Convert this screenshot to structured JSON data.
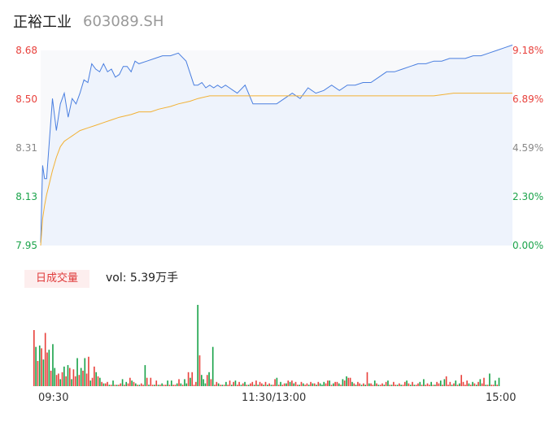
{
  "header": {
    "stock_name": "正裕工业",
    "stock_code": "603089.SH"
  },
  "colors": {
    "up": "#e8413c",
    "down": "#1aa34a",
    "neutral": "#888888",
    "price_line": "#4a7fe0",
    "avg_line": "#f2b134",
    "area": "#eef3fc",
    "panel": "#f8f9fb"
  },
  "price_axis": {
    "left_ticks": [
      "8.68",
      "8.50",
      "8.31",
      "8.13",
      "7.95"
    ],
    "right_ticks": [
      "9.18%",
      "6.89%",
      "4.59%",
      "2.30%",
      "0.00%"
    ],
    "tick_colors": [
      "up",
      "up",
      "neutral",
      "down",
      "down"
    ]
  },
  "volume": {
    "tab_label": "日成交量",
    "summary": "vol: 5.39万手"
  },
  "time_axis": {
    "labels": [
      "09:30",
      "11:30/13:00",
      "15:00"
    ]
  },
  "chart_data": {
    "type": "line",
    "x_labels": [
      "09:30",
      "11:30/13:00",
      "15:00"
    ],
    "ylim": [
      7.95,
      8.68
    ],
    "series": [
      {
        "key": "price",
        "x": [
          0,
          1,
          2,
          3,
          4,
          6,
          8,
          10,
          12,
          14,
          16,
          18,
          20,
          22,
          24,
          26,
          28,
          30,
          32,
          34,
          36,
          38,
          40,
          42,
          44,
          46,
          48,
          50,
          54,
          58,
          62,
          66,
          70,
          74,
          78,
          80,
          82,
          84,
          86,
          88,
          90,
          92,
          94,
          96,
          98,
          100,
          104,
          108,
          112,
          116,
          120,
          124,
          128,
          132,
          136,
          140,
          144,
          148,
          152,
          156,
          160,
          164,
          168,
          172,
          176,
          180,
          184,
          188,
          192,
          196,
          200,
          204,
          208,
          212,
          216,
          220,
          224,
          228,
          232,
          236,
          240
        ],
        "values": [
          7.96,
          8.25,
          8.2,
          8.2,
          8.3,
          8.5,
          8.38,
          8.48,
          8.52,
          8.43,
          8.5,
          8.48,
          8.52,
          8.57,
          8.56,
          8.63,
          8.61,
          8.6,
          8.63,
          8.6,
          8.61,
          8.58,
          8.59,
          8.62,
          8.62,
          8.6,
          8.64,
          8.63,
          8.64,
          8.65,
          8.66,
          8.66,
          8.67,
          8.64,
          8.55,
          8.55,
          8.56,
          8.54,
          8.55,
          8.54,
          8.55,
          8.54,
          8.55,
          8.54,
          8.53,
          8.52,
          8.55,
          8.48,
          8.48,
          8.48,
          8.48,
          8.5,
          8.52,
          8.5,
          8.54,
          8.52,
          8.53,
          8.55,
          8.53,
          8.55,
          8.55,
          8.56,
          8.56,
          8.58,
          8.6,
          8.6,
          8.61,
          8.62,
          8.63,
          8.63,
          8.64,
          8.64,
          8.65,
          8.65,
          8.65,
          8.66,
          8.66,
          8.67,
          8.68,
          8.69,
          8.7
        ]
      },
      {
        "key": "average",
        "x": [
          0,
          1,
          2,
          3,
          4,
          5,
          6,
          8,
          10,
          12,
          14,
          16,
          18,
          20,
          24,
          28,
          32,
          36,
          40,
          46,
          50,
          56,
          60,
          66,
          70,
          76,
          80,
          86,
          90,
          96,
          100,
          110,
          120,
          130,
          140,
          150,
          160,
          170,
          180,
          190,
          200,
          210,
          220,
          230,
          240
        ],
        "values": [
          7.95,
          8.05,
          8.1,
          8.14,
          8.17,
          8.2,
          8.23,
          8.28,
          8.32,
          8.34,
          8.35,
          8.36,
          8.37,
          8.38,
          8.39,
          8.4,
          8.41,
          8.42,
          8.43,
          8.44,
          8.45,
          8.45,
          8.46,
          8.47,
          8.48,
          8.49,
          8.5,
          8.51,
          8.51,
          8.51,
          8.51,
          8.51,
          8.51,
          8.51,
          8.51,
          8.51,
          8.51,
          8.51,
          8.51,
          8.51,
          8.51,
          8.52,
          8.52,
          8.52,
          8.52
        ]
      }
    ],
    "volume_bars": [
      40,
      28,
      18,
      29,
      27,
      19,
      38,
      24,
      26,
      11,
      30,
      13,
      8,
      9,
      5,
      10,
      14,
      7,
      15,
      13,
      5,
      12,
      7,
      20,
      8,
      13,
      11,
      20,
      9,
      21,
      4,
      6,
      14,
      10,
      7,
      6,
      3,
      2,
      2,
      3,
      1,
      1,
      4,
      1,
      1,
      1,
      2,
      5,
      1,
      3,
      2,
      6,
      4,
      3,
      2,
      1,
      1,
      2,
      1,
      15,
      6,
      1,
      6,
      1,
      1,
      4,
      1,
      1,
      2,
      1,
      1,
      4,
      1,
      4,
      1,
      1,
      2,
      5,
      2,
      1,
      5,
      2,
      10,
      6,
      10,
      1,
      3,
      58,
      22,
      8,
      5,
      2,
      8,
      10,
      5,
      28,
      1,
      3,
      2,
      1,
      1,
      1,
      3,
      1,
      4,
      1,
      3,
      4,
      1,
      3,
      1,
      2,
      3,
      1,
      1,
      2,
      3,
      1,
      4,
      1,
      3,
      2,
      1,
      3,
      1,
      2,
      1,
      1,
      5,
      6,
      1,
      3,
      1,
      2,
      2,
      4,
      3,
      4,
      2,
      3,
      1,
      1,
      3,
      2,
      1,
      2,
      1,
      3,
      2,
      2,
      1,
      3,
      2,
      1,
      3,
      2,
      4,
      4,
      1,
      2,
      3,
      3,
      2,
      1,
      5,
      4,
      7,
      6,
      6,
      3,
      2,
      1,
      3,
      2,
      1,
      2,
      1,
      10,
      2,
      2,
      1,
      4,
      2,
      1,
      1,
      2,
      1,
      3,
      4,
      1,
      1,
      3,
      1,
      1,
      2,
      1,
      1,
      3,
      4,
      2,
      1,
      3,
      1,
      1,
      2,
      3,
      1,
      5,
      1,
      2,
      1,
      3,
      1,
      1,
      3,
      2,
      4,
      1,
      5,
      7,
      1,
      3,
      1,
      2,
      4,
      1,
      2,
      8,
      3,
      1,
      4,
      2,
      1,
      3,
      2,
      1,
      3,
      5,
      2,
      6,
      1,
      1,
      9,
      1,
      1,
      4,
      1,
      6
    ],
    "volume_colors": "rgrgrgrrgrggrrgrgrgrgrrgrgrgrrgrrgrgrgrrgrgrgrrgrgrrgrgrgrrgrgrrgrgrgrrgrgrrgrgrggrgrrrgrgggrgrgrrgrgrgrrgrgrrgrgrgrrgrgrrgrgrgrrgrgrrgrgrgrrgrgrrgrgrgrgggrrgrgrrgrgrgrrgrgrrgrgrgrrgrgrrgrgrgrrgrgrrgrgrgrrgrgrrrgrgrrgrgrrrgrgrgrrrrgrgrgrgrrgrgrrgrg"
  }
}
